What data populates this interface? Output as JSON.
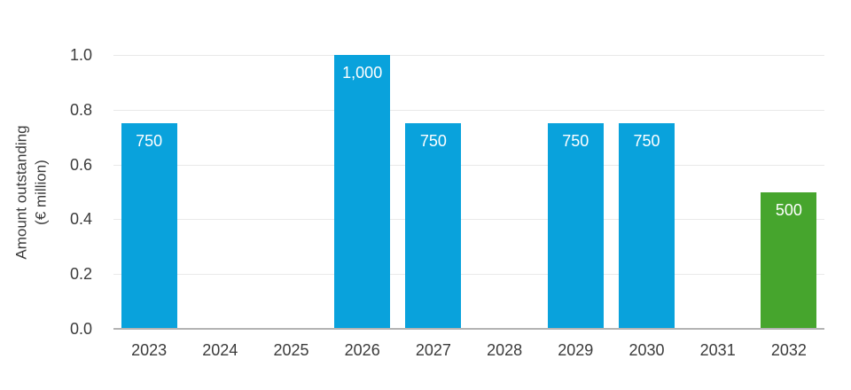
{
  "chart_data": {
    "type": "bar",
    "title": "",
    "xlabel": "",
    "ylabel": "Amount outstanding (€ million)",
    "ylabel_lines": {
      "line1": "Amount outstanding",
      "line2": "(€ million)"
    },
    "categories": [
      "2023",
      "2024",
      "2025",
      "2026",
      "2027",
      "2028",
      "2029",
      "2030",
      "2031",
      "2032"
    ],
    "values_eur_million": [
      750,
      0,
      0,
      1000,
      750,
      0,
      750,
      750,
      0,
      500
    ],
    "data_labels": [
      "750",
      "",
      "",
      "1,000",
      "750",
      "",
      "750",
      "750",
      "",
      "500"
    ],
    "bar_colors": [
      "#09a2dc",
      null,
      null,
      "#09a2dc",
      "#09a2dc",
      null,
      "#09a2dc",
      "#09a2dc",
      null,
      "#46a52d"
    ],
    "y_ticks": [
      0,
      0.2,
      0.4,
      0.6,
      0.8,
      1.0
    ],
    "y_tick_labels": [
      "0.0",
      "0.2",
      "0.4",
      "0.6",
      "0.8",
      "1.0"
    ],
    "ylim": [
      0,
      1.0
    ],
    "value_axis_divisor": 1000,
    "grid": true,
    "legend_position": "none",
    "colors": {
      "bar_blue": "#09a2dc",
      "bar_green": "#46a52d",
      "gridline": "#e9e9e9",
      "axis_line": "#b3b3b3",
      "text": "#3b3b3b",
      "bar_label_text": "#ffffff"
    }
  }
}
